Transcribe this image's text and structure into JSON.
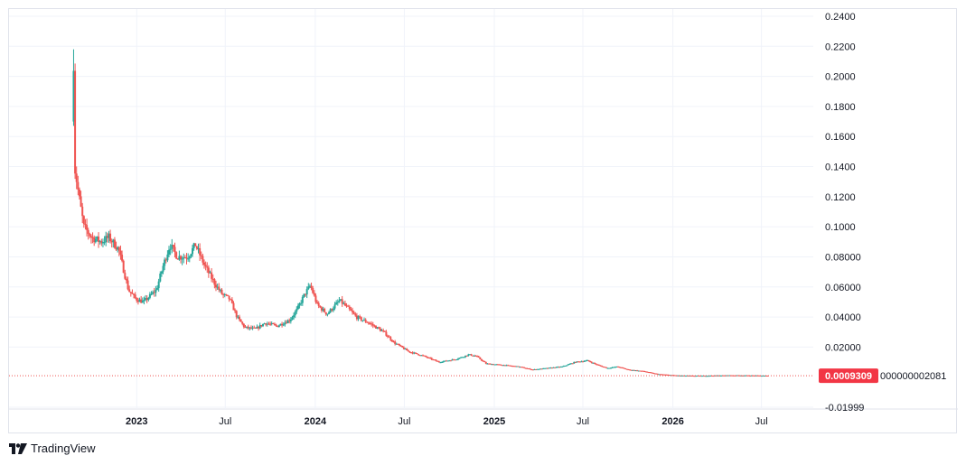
{
  "chart_data": {
    "type": "candlestick",
    "ylim": [
      -0.02,
      0.24
    ],
    "y_ticks": [
      "0.2400",
      "0.2200",
      "0.2000",
      "0.1800",
      "0.1600",
      "0.1400",
      "0.1200",
      "0.1000",
      "0.08000",
      "0.06000",
      "0.04000",
      "0.02000",
      "-0.01999"
    ],
    "x_ticks": [
      {
        "label": "2023",
        "major": true
      },
      {
        "label": "Jul",
        "major": false
      },
      {
        "label": "2024",
        "major": true
      },
      {
        "label": "Jul",
        "major": false
      },
      {
        "label": "2025",
        "major": true
      },
      {
        "label": "Jul",
        "major": false
      },
      {
        "label": "2026",
        "major": true
      },
      {
        "label": "Jul",
        "major": false
      }
    ],
    "x_range": [
      "2022-04-15",
      "2026-10-15"
    ],
    "last_price": {
      "value": 0.0009309,
      "label": "0.0009309"
    },
    "overflow_label": "000000002081",
    "colors": {
      "up": "#26a69a",
      "down": "#ef5350",
      "grid": "#f0f3fa",
      "price_line": "#ef5350",
      "label_bg": "#f23645"
    },
    "price_path": [
      [
        "2022-08-25",
        0.21
      ],
      [
        "2022-08-27",
        0.14
      ],
      [
        "2022-09-05",
        0.12
      ],
      [
        "2022-09-15",
        0.1
      ],
      [
        "2022-10-01",
        0.093
      ],
      [
        "2022-10-20",
        0.09
      ],
      [
        "2022-11-05",
        0.093
      ],
      [
        "2022-11-25",
        0.085
      ],
      [
        "2022-12-15",
        0.058
      ],
      [
        "2022-12-30",
        0.052
      ],
      [
        "2023-01-15",
        0.05
      ],
      [
        "2023-02-10",
        0.058
      ],
      [
        "2023-02-25",
        0.075
      ],
      [
        "2023-03-10",
        0.088
      ],
      [
        "2023-03-25",
        0.08
      ],
      [
        "2023-04-15",
        0.08
      ],
      [
        "2023-05-01",
        0.088
      ],
      [
        "2023-05-20",
        0.074
      ],
      [
        "2023-06-10",
        0.062
      ],
      [
        "2023-06-25",
        0.055
      ],
      [
        "2023-07-10",
        0.052
      ],
      [
        "2023-07-25",
        0.04
      ],
      [
        "2023-08-10",
        0.033
      ],
      [
        "2023-09-01",
        0.032
      ],
      [
        "2023-09-20",
        0.036
      ],
      [
        "2023-10-15",
        0.034
      ],
      [
        "2023-11-10",
        0.038
      ],
      [
        "2023-11-25",
        0.045
      ],
      [
        "2023-12-10",
        0.055
      ],
      [
        "2023-12-22",
        0.061
      ],
      [
        "2024-01-05",
        0.048
      ],
      [
        "2024-01-25",
        0.042
      ],
      [
        "2024-02-20",
        0.051
      ],
      [
        "2024-03-10",
        0.045
      ],
      [
        "2024-03-25",
        0.04
      ],
      [
        "2024-04-20",
        0.036
      ],
      [
        "2024-05-20",
        0.03
      ],
      [
        "2024-06-10",
        0.023
      ],
      [
        "2024-07-10",
        0.017
      ],
      [
        "2024-08-10",
        0.014
      ],
      [
        "2024-09-10",
        0.01
      ],
      [
        "2024-10-15",
        0.012
      ],
      [
        "2024-11-10",
        0.015
      ],
      [
        "2024-11-25",
        0.014
      ],
      [
        "2024-12-15",
        0.009
      ],
      [
        "2025-01-20",
        0.008
      ],
      [
        "2025-02-20",
        0.007
      ],
      [
        "2025-03-20",
        0.005
      ],
      [
        "2025-04-20",
        0.006
      ],
      [
        "2025-05-20",
        0.007
      ],
      [
        "2025-06-15",
        0.01
      ],
      [
        "2025-07-10",
        0.011
      ],
      [
        "2025-08-01",
        0.008
      ],
      [
        "2025-08-20",
        0.006
      ],
      [
        "2025-09-10",
        0.007
      ],
      [
        "2025-10-01",
        0.005
      ],
      [
        "2025-11-01",
        0.004
      ],
      [
        "2025-12-01",
        0.002
      ],
      [
        "2026-01-15",
        0.001
      ],
      [
        "2026-03-01",
        0.0009
      ],
      [
        "2026-05-01",
        0.0012
      ],
      [
        "2026-07-01",
        0.001
      ],
      [
        "2026-07-15",
        0.0009309
      ]
    ]
  },
  "branding": {
    "name": "TradingView"
  }
}
